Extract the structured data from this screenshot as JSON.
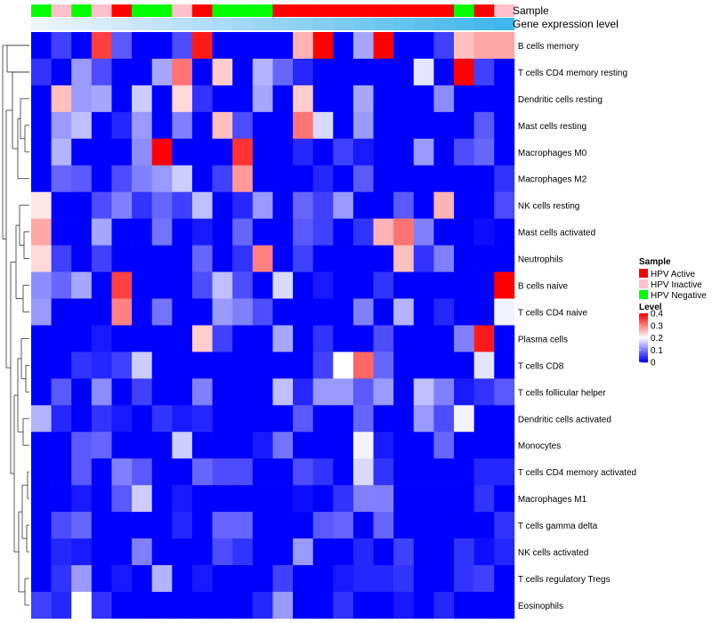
{
  "chart_data": {
    "type": "heatmap",
    "annotation_labels": [
      "Sample",
      "Gene expression level"
    ],
    "sample_groups": [
      "HPV Negative",
      "HPV Inactive",
      "HPV Negative",
      "HPV Inactive",
      "HPV Active",
      "HPV Negative",
      "HPV Negative",
      "HPV Inactive",
      "HPV Active",
      "HPV Negative",
      "HPV Negative",
      "HPV Negative",
      "HPV Active",
      "HPV Active",
      "HPV Active",
      "HPV Active",
      "HPV Active",
      "HPV Active",
      "HPV Active",
      "HPV Active",
      "HPV Active",
      "HPV Negative",
      "HPV Active",
      "HPV Inactive"
    ],
    "expression_gradient": [
      "#eef3fa",
      "#3fb6ec"
    ],
    "rows": [
      "B cells memory",
      "T cells CD4 memory resting",
      "Dendritic cells resting",
      "Mast cells resting",
      "Macrophages M0",
      "Macrophages M2",
      "NK cells resting",
      "Mast cells activated",
      "Neutrophils",
      "B cells naive",
      "T cells CD4 naive",
      "Plasma cells",
      "T cells CD8",
      "T cells follicular helper",
      "Dendritic cells activated",
      "Monocytes",
      "T cells CD4 memory activated",
      "Macrophages M1",
      "T cells gamma delta",
      "NK cells activated",
      "T cells regulatory  Tregs",
      "Eosinophils"
    ],
    "values": [
      [
        0,
        0.05,
        0,
        0.35,
        0.07,
        0,
        0,
        0.06,
        0.38,
        0,
        0,
        0,
        0,
        0.26,
        0.4,
        0,
        0.13,
        0.4,
        0,
        0,
        0.05,
        0.25,
        0.27,
        0.27
      ],
      [
        0.04,
        0,
        0.12,
        0.06,
        0,
        0,
        0.13,
        0.31,
        0,
        0.24,
        0,
        0.14,
        0.08,
        0.03,
        0,
        0,
        0,
        0,
        0,
        0.18,
        0,
        0.4,
        0.05,
        0
      ],
      [
        0,
        0.25,
        0.12,
        0.13,
        0,
        0.16,
        0,
        0.23,
        0.04,
        0,
        0,
        0.13,
        0,
        0.24,
        0,
        0,
        0.13,
        0,
        0,
        0,
        0.11,
        0,
        0,
        0
      ],
      [
        0,
        0.12,
        0.15,
        0,
        0.03,
        0.12,
        0,
        0.1,
        0,
        0.25,
        0.06,
        0,
        0,
        0.31,
        0.17,
        0,
        0.12,
        0,
        0,
        0,
        0,
        0,
        0.07,
        0
      ],
      [
        0,
        0.14,
        0,
        0,
        0,
        0.11,
        0.4,
        0,
        0,
        0,
        0.36,
        0,
        0,
        0.03,
        0,
        0.05,
        0.02,
        0,
        0,
        0.12,
        0,
        0.06,
        0.08,
        0
      ],
      [
        0,
        0.08,
        0.07,
        0,
        0.06,
        0.1,
        0.12,
        0.16,
        0,
        0.05,
        0.28,
        0,
        0,
        0,
        0.03,
        0,
        0.07,
        0,
        0,
        0,
        0,
        0,
        0,
        0.04
      ],
      [
        0.22,
        0,
        0,
        0.06,
        0.1,
        0.04,
        0.08,
        0.05,
        0.15,
        0,
        0.03,
        0.12,
        0,
        0.08,
        0.05,
        0.12,
        0,
        0,
        0.07,
        0,
        0.26,
        0,
        0,
        0.06
      ],
      [
        0.27,
        0,
        0,
        0.13,
        0,
        0,
        0.09,
        0,
        0.02,
        0,
        0.08,
        0,
        0,
        0.07,
        0.05,
        0,
        0.04,
        0.26,
        0.31,
        0.1,
        0,
        0,
        0.01,
        0
      ],
      [
        0.23,
        0.05,
        0,
        0.05,
        0,
        0,
        0,
        0,
        0.08,
        0,
        0.04,
        0.3,
        0,
        0.05,
        0,
        0,
        0,
        0,
        0.25,
        0.04,
        0.1,
        0,
        0,
        0
      ],
      [
        0.11,
        0.08,
        0.13,
        0,
        0.35,
        0,
        0,
        0,
        0.06,
        0.15,
        0.06,
        0,
        0.17,
        0,
        0.02,
        0,
        0,
        0.04,
        0,
        0,
        0,
        0,
        0,
        0.4
      ],
      [
        0.12,
        0,
        0,
        0,
        0.3,
        0,
        0.09,
        0,
        0,
        0.12,
        0.1,
        0.06,
        0,
        0,
        0,
        0,
        0.1,
        0,
        0.14,
        0,
        0.03,
        0,
        0,
        0.19
      ],
      [
        0,
        0,
        0,
        0.02,
        0,
        0,
        0,
        0,
        0.24,
        0.05,
        0,
        0,
        0.13,
        0,
        0.04,
        0,
        0,
        0.06,
        0,
        0,
        0,
        0.1,
        0.38,
        0
      ],
      [
        0,
        0,
        0.04,
        0.03,
        0.05,
        0.16,
        0,
        0,
        0,
        0,
        0,
        0,
        0,
        0,
        0.05,
        0.2,
        0.32,
        0.08,
        0,
        0,
        0,
        0,
        0.18,
        0
      ],
      [
        0,
        0.07,
        0,
        0.11,
        0,
        0.05,
        0,
        0,
        0.1,
        0,
        0,
        0,
        0.15,
        0.03,
        0.12,
        0.12,
        0.07,
        0.12,
        0,
        0.15,
        0.1,
        0.02,
        0.04,
        0.07
      ],
      [
        0.14,
        0.03,
        0,
        0.04,
        0.02,
        0,
        0.04,
        0.02,
        0.03,
        0,
        0,
        0,
        0,
        0.07,
        0,
        0,
        0.08,
        0,
        0,
        0.12,
        0.06,
        0.19,
        0,
        0
      ],
      [
        0,
        0,
        0.07,
        0.08,
        0,
        0,
        0,
        0.16,
        0,
        0,
        0,
        0.02,
        0.09,
        0,
        0,
        0,
        0.19,
        0.02,
        0,
        0,
        0.08,
        0,
        0,
        0
      ],
      [
        0,
        0,
        0.07,
        0,
        0.1,
        0.07,
        0,
        0,
        0.08,
        0.06,
        0.06,
        0,
        0,
        0.06,
        0.04,
        0,
        0.17,
        0.04,
        0,
        0,
        0,
        0,
        0.03,
        0.03
      ],
      [
        0,
        0,
        0.02,
        0,
        0.07,
        0.16,
        0,
        0.02,
        0,
        0,
        0,
        0,
        0,
        0.01,
        0,
        0.04,
        0.1,
        0.1,
        0,
        0,
        0,
        0,
        0.04,
        0
      ],
      [
        0,
        0.06,
        0.08,
        0,
        0,
        0,
        0,
        0.03,
        0,
        0.08,
        0.08,
        0,
        0,
        0,
        0.07,
        0.08,
        0,
        0.08,
        0,
        0,
        0,
        0,
        0,
        0.04
      ],
      [
        0,
        0.03,
        0.02,
        0,
        0,
        0.1,
        0,
        0,
        0,
        0.06,
        0.04,
        0,
        0,
        0.12,
        0,
        0,
        0.03,
        0,
        0.05,
        0,
        0,
        0.04,
        0.01,
        0.03
      ],
      [
        0,
        0.04,
        0.12,
        0,
        0.02,
        0,
        0.14,
        0,
        0.02,
        0,
        0,
        0,
        0.05,
        0,
        0,
        0.02,
        0.03,
        0.03,
        0.04,
        0,
        0,
        0.04,
        0.05,
        0
      ],
      [
        0.05,
        0.03,
        0.2,
        0.04,
        0,
        0,
        0,
        0,
        0,
        0,
        0,
        0.03,
        0.12,
        0,
        0,
        0.04,
        0,
        0,
        0.02,
        0,
        0.03,
        0,
        0,
        0
      ]
    ],
    "color_scale": {
      "min": 0,
      "max": 0.4,
      "colors": [
        "#0000ff",
        "#ffffff",
        "#ff0000"
      ]
    },
    "legend": {
      "sample_title": "Sample",
      "sample_entries": [
        {
          "label": "HPV Active",
          "color": "#ff0000"
        },
        {
          "label": "HPV Inactive",
          "color": "#ffc0cb"
        },
        {
          "label": "HPV Negative",
          "color": "#00ff00"
        }
      ],
      "level_title": "Level",
      "level_ticks": [
        0.4,
        0.3,
        0.2,
        0.1,
        0
      ],
      "placement": "right"
    },
    "row_dendrogram": true
  }
}
